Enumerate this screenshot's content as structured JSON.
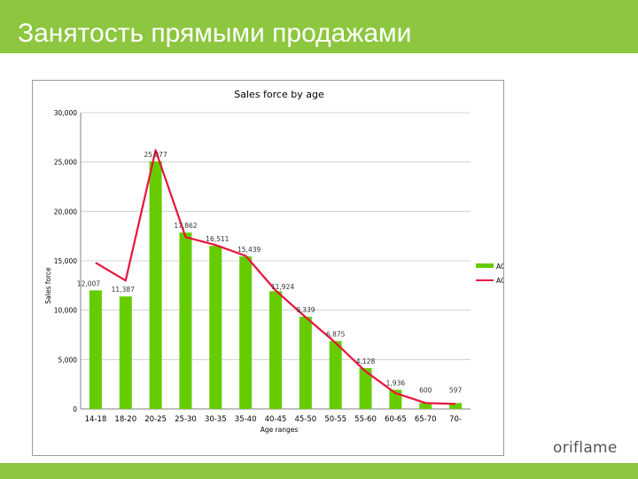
{
  "slide": {
    "title": "Занятость прямыми продажами"
  },
  "brand": {
    "logo_text": "oriflame"
  },
  "colors": {
    "accent": "#8dc63f",
    "bar": "#66cc00",
    "line": "#e8143c"
  },
  "chart_data": {
    "type": "bar",
    "title": "Sales force by age",
    "xlabel": "Age ranges",
    "ylabel": "Sales force",
    "ylim": [
      0,
      30000
    ],
    "yticks": [
      0,
      5000,
      10000,
      15000,
      20000,
      25000,
      30000
    ],
    "ytick_labels": [
      "0",
      "5,000",
      "10,000",
      "15,000",
      "20,000",
      "25,000",
      "30,000"
    ],
    "categories": [
      "14-18",
      "18-20",
      "20-25",
      "25-30",
      "30-35",
      "35-40",
      "40-45",
      "45-50",
      "50-55",
      "55-60",
      "60-65",
      "65-70",
      "70-"
    ],
    "grid": true,
    "legend_position": "right",
    "series": [
      {
        "name": "AGE CY",
        "type": "bar",
        "values": [
          12007,
          11387,
          25077,
          17862,
          16511,
          15439,
          11924,
          9339,
          6875,
          4128,
          1936,
          600,
          597
        ],
        "labels": [
          "12,007",
          "11,387",
          "25,077",
          "17,862",
          "16,511",
          "15,439",
          "11,924",
          "9,339",
          "6,875",
          "4,128",
          "1,936",
          "600",
          "597"
        ]
      },
      {
        "name": "AGE PY",
        "type": "line",
        "values": [
          14800,
          13000,
          26200,
          17400,
          16600,
          15500,
          12000,
          9300,
          6700,
          3800,
          1600,
          600,
          500
        ]
      }
    ]
  }
}
